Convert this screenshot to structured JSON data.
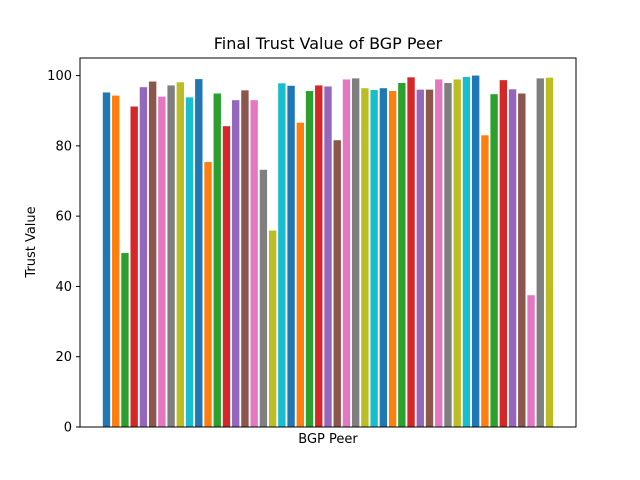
{
  "chart_data": {
    "type": "bar",
    "title": "Final Trust Value of BGP Peer",
    "xlabel": "BGP Peer",
    "ylabel": "Trust Value",
    "ylim": [
      0,
      105
    ],
    "yticks": [
      0,
      20,
      40,
      60,
      80,
      100
    ],
    "grid": false,
    "legend": "none",
    "colors": [
      "#1f77b4",
      "#ff7f0e",
      "#2ca02c",
      "#d62728",
      "#9467bd",
      "#8c564b",
      "#e377c2",
      "#7f7f7f",
      "#bcbd22",
      "#17becf"
    ],
    "values": [
      95.2,
      94.3,
      49.5,
      91.2,
      96.7,
      98.3,
      94.0,
      97.2,
      98.1,
      93.8,
      99.0,
      75.4,
      94.9,
      85.6,
      93.0,
      95.8,
      93.0,
      73.2,
      55.9,
      97.8,
      97.1,
      86.6,
      95.6,
      97.2,
      96.9,
      81.6,
      98.9,
      99.2,
      96.4,
      95.9,
      96.4,
      95.6,
      97.9,
      99.5,
      96.0,
      96.0,
      98.9,
      97.9,
      98.9,
      99.6,
      100.0,
      83.0,
      94.7,
      98.7,
      96.1,
      94.9,
      37.5,
      99.2,
      99.4
    ]
  }
}
